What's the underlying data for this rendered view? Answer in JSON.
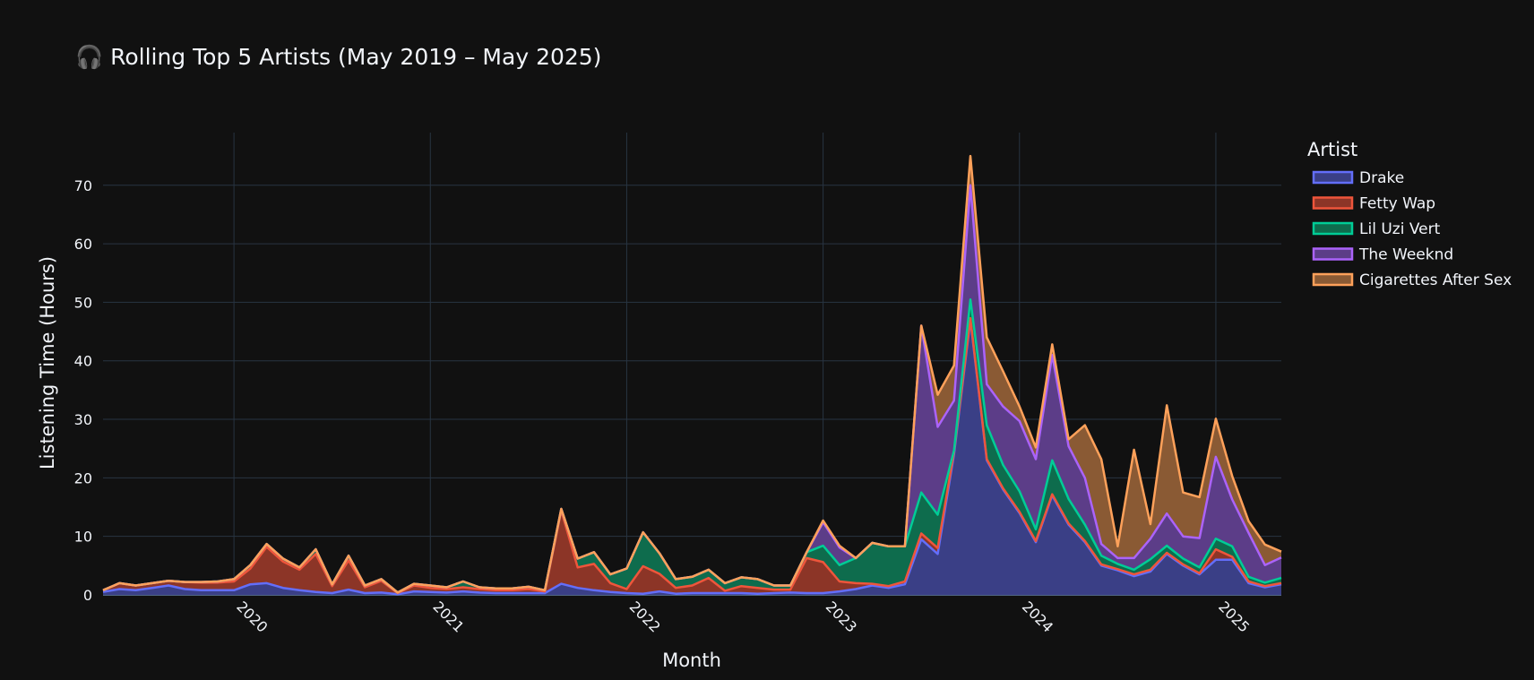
{
  "chart_data": {
    "type": "area",
    "stacked": true,
    "title": "🎧 Rolling Top 5 Artists (May 2019 – May 2025)",
    "xlabel": "Month",
    "ylabel": "Listening Time (Hours)",
    "legend_title": "Artist",
    "legend_position": "right",
    "grid": true,
    "x_start": "2019-05",
    "x_end": "2025-05",
    "x_ticks": [
      "2020",
      "2021",
      "2022",
      "2023",
      "2024",
      "2025"
    ],
    "y_ticks": [
      0,
      10,
      20,
      30,
      40,
      50,
      60,
      70
    ],
    "ylim": [
      0,
      79
    ],
    "series": [
      {
        "name": "Drake",
        "color": "#636efa",
        "fill": "#3a3f86",
        "values": [
          0.5,
          1.0,
          0.8,
          1.2,
          1.6,
          1.0,
          0.8,
          0.8,
          0.8,
          1.8,
          2.0,
          1.2,
          0.8,
          0.5,
          0.3,
          0.9,
          0.3,
          0.4,
          0.1,
          0.6,
          0.5,
          0.4,
          0.6,
          0.4,
          0.3,
          0.3,
          0.3,
          0.3,
          1.9,
          1.2,
          0.8,
          0.5,
          0.3,
          0.2,
          0.6,
          0.2,
          0.3,
          0.3,
          0.3,
          0.3,
          0.2,
          0.3,
          0.4,
          0.3,
          0.3,
          0.6,
          1.0,
          1.6,
          1.2,
          1.8,
          9.5,
          7.0,
          24.0,
          47.0,
          23.0,
          18.0,
          14.0,
          9.0,
          17.0,
          12.0,
          9.0,
          5.0,
          4.2,
          3.2,
          4.0,
          7.0,
          5.0,
          3.5,
          6.0,
          6.0,
          2.0,
          1.3,
          1.8
        ]
      },
      {
        "name": "Fetty Wap",
        "color": "#ef553b",
        "fill": "#8c3527",
        "values": [
          0.3,
          1.0,
          0.8,
          0.8,
          0.8,
          1.2,
          1.3,
          1.3,
          1.5,
          2.7,
          6.2,
          4.5,
          3.5,
          6.5,
          1.2,
          5.0,
          1.0,
          2.0,
          0.2,
          1.0,
          0.7,
          0.6,
          0.7,
          0.6,
          0.5,
          0.5,
          0.7,
          0.3,
          12.5,
          3.5,
          4.5,
          1.5,
          0.7,
          4.7,
          3.0,
          1.0,
          1.3,
          2.6,
          0.4,
          1.2,
          1.0,
          0.6,
          0.5,
          6.0,
          5.3,
          1.7,
          1.0,
          0.3,
          0.3,
          0.5,
          1.0,
          1.0,
          0.5,
          0.3,
          0.2,
          0.2,
          0.2,
          0.2,
          0.2,
          0.2,
          0.2,
          0.2,
          0.2,
          0.3,
          0.3,
          0.2,
          0.2,
          0.2,
          1.8,
          0.5,
          0.3,
          0.2,
          0.2
        ]
      },
      {
        "name": "Lil Uzi Vert",
        "color": "#00cc96",
        "fill": "#0e6c4d",
        "values": [
          0,
          0,
          0,
          0,
          0,
          0,
          0.1,
          0.2,
          0.4,
          0.6,
          0.5,
          0.5,
          0.4,
          0.8,
          0.3,
          0.8,
          0.3,
          0.3,
          0.1,
          0.3,
          0.4,
          0.3,
          1.0,
          0.3,
          0.3,
          0.3,
          0.4,
          0.2,
          0.3,
          1.5,
          2.0,
          1.5,
          3.5,
          5.8,
          3.5,
          1.5,
          1.5,
          1.4,
          1.3,
          1.5,
          1.5,
          0.7,
          0.7,
          1.0,
          2.8,
          2.8,
          4.3,
          7.0,
          6.8,
          6.0,
          7.0,
          5.7,
          0.2,
          3.2,
          5.8,
          4.0,
          3.5,
          2.0,
          5.8,
          4.2,
          2.8,
          1.5,
          0.9,
          0.8,
          1.8,
          1.2,
          1.0,
          1.0,
          1.8,
          1.8,
          0.8,
          0.6,
          0.9
        ]
      },
      {
        "name": "The Weeknd",
        "color": "#ab63fa",
        "fill": "#5c3d88",
        "values": [
          0,
          0,
          0,
          0,
          0,
          0,
          0,
          0,
          0,
          0,
          0,
          0,
          0,
          0,
          0,
          0,
          0,
          0,
          0,
          0,
          0,
          0,
          0,
          0,
          0,
          0,
          0,
          0,
          0,
          0,
          0,
          0,
          0,
          0,
          0,
          0,
          0,
          0,
          0,
          0,
          0,
          0,
          0,
          0,
          4.0,
          3.0,
          0,
          0,
          0,
          0,
          28.5,
          15.0,
          8.5,
          19.5,
          7.0,
          10.0,
          12.0,
          12.0,
          18.0,
          9.0,
          8.0,
          2.0,
          1.0,
          2.0,
          3.5,
          5.5,
          3.8,
          5.0,
          14.0,
          8.0,
          7.5,
          3.0,
          3.5
        ]
      },
      {
        "name": "Cigarettes After Sex",
        "color": "#ffa15a",
        "fill": "#8a5a34",
        "values": [
          0,
          0,
          0,
          0,
          0,
          0,
          0,
          0,
          0,
          0,
          0,
          0,
          0,
          0,
          0,
          0,
          0,
          0,
          0,
          0,
          0,
          0,
          0,
          0,
          0,
          0,
          0,
          0,
          0,
          0,
          0,
          0,
          0,
          0,
          0,
          0,
          0,
          0,
          0,
          0,
          0,
          0,
          0,
          0,
          0.3,
          0.3,
          0,
          0,
          0,
          0,
          0,
          5.5,
          6.0,
          5.0,
          8.0,
          6.0,
          2.5,
          2.0,
          1.8,
          1.2,
          9.0,
          14.5,
          2.0,
          18.5,
          2.5,
          18.5,
          7.5,
          7.0,
          6.5,
          4.0,
          2.0,
          3.5,
          1.0
        ]
      }
    ]
  }
}
